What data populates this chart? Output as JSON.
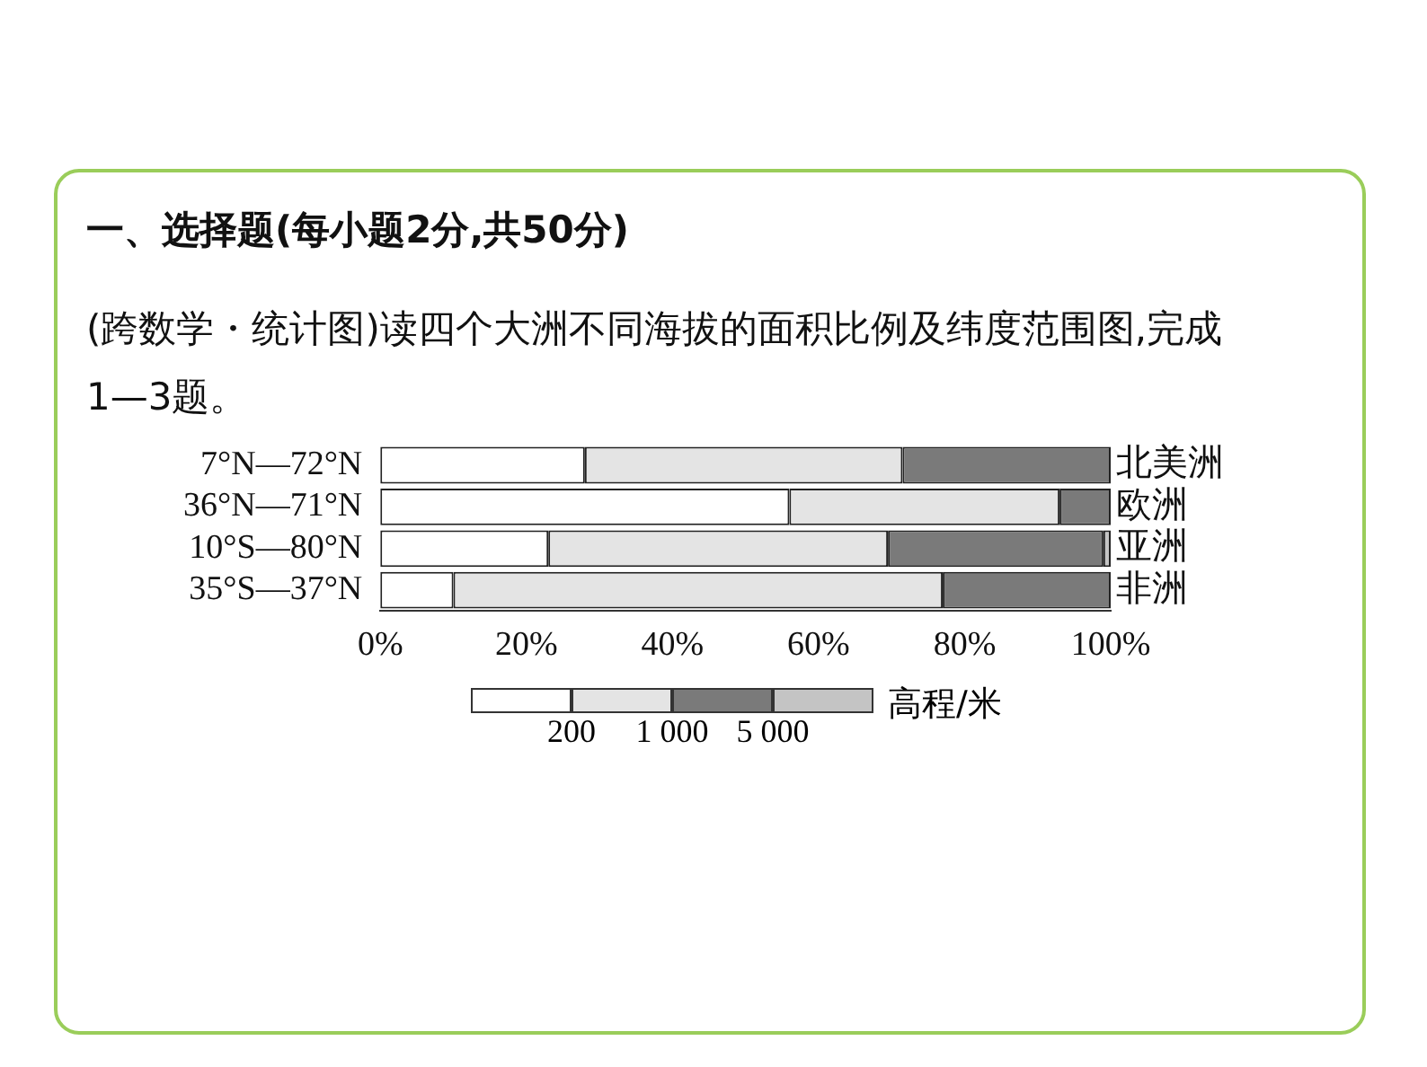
{
  "chart_data": {
    "type": "bar",
    "orientation": "horizontal",
    "stacked": true,
    "title": "一、选择题(每小题2分,共50分)",
    "subtitle": "(跨数学・统计图)读四个大洲不同海拔的面积比例及纬度范围图,完成1—3题。",
    "categories": [
      "7°N—72°N",
      "36°N—71°N",
      "10°S—80°N",
      "35°S—37°N"
    ],
    "series": [
      {
        "color": "#ffffff",
        "values": [
          28,
          56,
          23,
          10
        ]
      },
      {
        "color": "#e4e4e4",
        "values": [
          43.5,
          37,
          46.5,
          67
        ]
      },
      {
        "color": "#7a7a7a",
        "values": [
          28.5,
          7,
          29.5,
          23
        ]
      },
      {
        "color": "#c4c4c4",
        "values": [
          0,
          0,
          1,
          0
        ]
      }
    ],
    "xlim": [
      0,
      100
    ],
    "xticks": [
      {
        "value": 0,
        "label": "0%"
      },
      {
        "value": 20,
        "label": "20%"
      },
      {
        "value": 40,
        "label": "40%"
      },
      {
        "value": 60,
        "label": "60%"
      },
      {
        "value": 80,
        "label": "80%"
      },
      {
        "value": 100,
        "label": "100%"
      }
    ],
    "legend_title": "高程/米",
    "grid": false,
    "annotations": [
      "北美洲",
      "欧洲",
      "亚洲",
      "非洲",
      "200",
      "1 000",
      "5 000"
    ]
  }
}
